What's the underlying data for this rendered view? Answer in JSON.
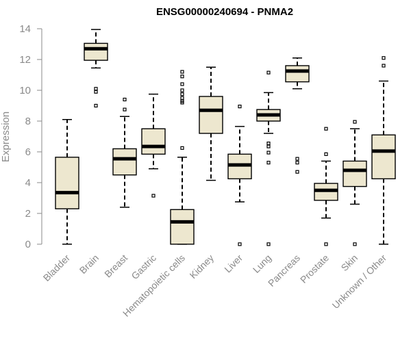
{
  "chart_data": {
    "type": "boxplot",
    "title": "ENSG00000240694 - PNMA2",
    "xlabel": "",
    "ylabel": "Expression",
    "ylim": [
      0,
      14
    ],
    "yticks": [
      0,
      2,
      4,
      6,
      8,
      10,
      12,
      14
    ],
    "grid": false,
    "box_fill": "#ede7cf",
    "categories": [
      "Bladder",
      "Brain",
      "Breast",
      "Gastric",
      "Hematopoietic cells",
      "Kidney",
      "Liver",
      "Lung",
      "Pancreas",
      "Prostate",
      "Skin",
      "Unknown / Other"
    ],
    "boxes": [
      {
        "min": 0.0,
        "q1": 2.3,
        "median": 3.35,
        "q3": 5.65,
        "max": 8.1,
        "outliers": []
      },
      {
        "min": 11.45,
        "q1": 11.95,
        "median": 12.7,
        "q3": 13.05,
        "max": 13.95,
        "outliers": [
          10.1,
          9.9,
          9.0
        ]
      },
      {
        "min": 2.4,
        "q1": 4.5,
        "median": 5.55,
        "q3": 6.2,
        "max": 8.3,
        "outliers": [
          9.4,
          8.75
        ]
      },
      {
        "min": 4.9,
        "q1": 5.85,
        "median": 6.35,
        "q3": 7.5,
        "max": 9.75,
        "outliers": [
          3.15
        ]
      },
      {
        "min": 0.0,
        "q1": 0.0,
        "median": 1.45,
        "q3": 2.25,
        "max": 5.65,
        "outliers": [
          11.2,
          10.9,
          10.4,
          10.0,
          9.75,
          9.5,
          9.3,
          9.2,
          6.25
        ]
      },
      {
        "min": 4.15,
        "q1": 7.2,
        "median": 8.7,
        "q3": 9.6,
        "max": 11.5,
        "outliers": []
      },
      {
        "min": 2.75,
        "q1": 4.25,
        "median": 5.15,
        "q3": 5.85,
        "max": 7.65,
        "outliers": [
          8.95,
          0.0
        ]
      },
      {
        "min": 7.2,
        "q1": 8.0,
        "median": 8.4,
        "q3": 8.75,
        "max": 9.85,
        "outliers": [
          11.15,
          6.55,
          6.35,
          5.95,
          5.3,
          0.0
        ]
      },
      {
        "min": 10.1,
        "q1": 10.55,
        "median": 11.25,
        "q3": 11.6,
        "max": 12.1,
        "outliers": [
          5.55,
          5.3,
          4.7
        ]
      },
      {
        "min": 1.7,
        "q1": 2.85,
        "median": 3.5,
        "q3": 3.95,
        "max": 5.4,
        "outliers": [
          7.5,
          5.85,
          0.0
        ]
      },
      {
        "min": 2.6,
        "q1": 3.75,
        "median": 4.8,
        "q3": 5.4,
        "max": 7.5,
        "outliers": [
          7.95,
          0.0
        ]
      },
      {
        "min": 0.0,
        "q1": 4.25,
        "median": 6.05,
        "q3": 7.1,
        "max": 10.6,
        "outliers": [
          12.1,
          11.6
        ]
      }
    ]
  }
}
